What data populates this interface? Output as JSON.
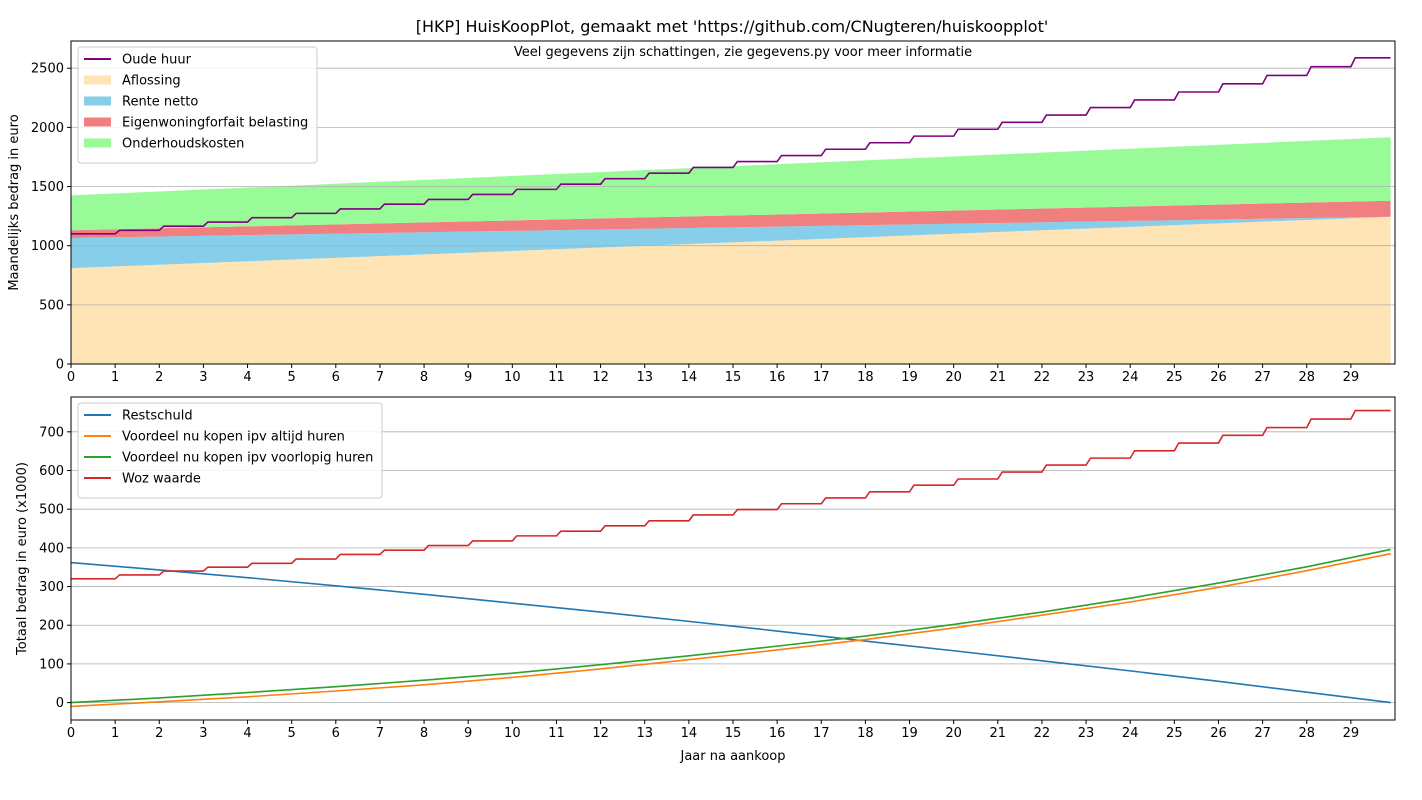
{
  "figure": {
    "title": "[HKP] HuisKoopPlot, gemaakt met 'https://github.com/CNugteren/huiskoopplot'",
    "subtitle": "Veel gegevens zijn schattingen, zie gegevens.py voor meer informatie"
  },
  "chart_data": [
    {
      "type": "area",
      "stacked": true,
      "xlabel": "",
      "ylabel": "Maandelijks bedrag in euro",
      "xlim": [
        0,
        30
      ],
      "ylim": [
        0,
        2730
      ],
      "xticks": [
        0,
        1,
        2,
        3,
        4,
        5,
        6,
        7,
        8,
        9,
        10,
        11,
        12,
        13,
        14,
        15,
        16,
        17,
        18,
        19,
        20,
        21,
        22,
        23,
        24,
        25,
        26,
        27,
        28,
        29
      ],
      "yticks": [
        0,
        500,
        1000,
        1500,
        2000,
        2500
      ],
      "grid": "y",
      "legend_position": "top-left",
      "x": [
        0,
        29.9
      ],
      "series": [
        {
          "name": "Aflossing",
          "color": "#ffe4b5",
          "values": [
            810,
            1245
          ]
        },
        {
          "name": "Rente netto",
          "color": "#87ceeb",
          "values": [
            255,
            0
          ]
        },
        {
          "name": "Eigenwoningforfait belasting",
          "color": "#f08080",
          "values": [
            65,
            135
          ]
        },
        {
          "name": "Onderhoudskosten",
          "color": "#98fb98",
          "values": [
            295,
            537
          ]
        }
      ],
      "step_series": [
        {
          "name": "Oude huur",
          "color": "#800080",
          "values": [
            1100,
            1130,
            1165,
            1200,
            1237,
            1273,
            1311,
            1351,
            1391,
            1433,
            1476,
            1520,
            1566,
            1613,
            1661,
            1711,
            1762,
            1815,
            1870,
            1926,
            1984,
            2043,
            2104,
            2167,
            2232,
            2299,
            2368,
            2439,
            2513,
            2588
          ]
        }
      ]
    },
    {
      "type": "line",
      "xlabel": "Jaar na aankoop",
      "ylabel": "Totaal bedrag in euro (x1000)",
      "xlim": [
        0,
        30
      ],
      "ylim": [
        -45,
        790
      ],
      "xticks": [
        0,
        1,
        2,
        3,
        4,
        5,
        6,
        7,
        8,
        9,
        10,
        11,
        12,
        13,
        14,
        15,
        16,
        17,
        18,
        19,
        20,
        21,
        22,
        23,
        24,
        25,
        26,
        27,
        28,
        29
      ],
      "yticks": [
        0,
        100,
        200,
        300,
        400,
        500,
        600,
        700
      ],
      "grid": "y",
      "legend_position": "top-left",
      "x": [
        0,
        2,
        4,
        6,
        8,
        10,
        12,
        14,
        16,
        18,
        20,
        22,
        24,
        26,
        28,
        29.9
      ],
      "series": [
        {
          "name": "Restschuld",
          "color": "#1f77b4",
          "values": [
            362,
            343,
            323,
            302,
            280,
            257,
            234,
            210,
            185,
            159,
            134,
            108,
            82,
            55,
            27,
            0
          ]
        },
        {
          "name": "Voordeel nu kopen ipv altijd huren",
          "color": "#ff7f0e",
          "values": [
            -10,
            2,
            15,
            30,
            46,
            65,
            87,
            111,
            136,
            163,
            193,
            226,
            260,
            298,
            341,
            385
          ]
        },
        {
          "name": "Voordeel nu kopen ipv voorlopig huren",
          "color": "#2ca02c",
          "values": [
            0,
            12,
            26,
            41,
            58,
            76,
            98,
            121,
            146,
            172,
            202,
            234,
            270,
            309,
            351,
            396
          ]
        }
      ],
      "step_series": [
        {
          "name": "Woz waarde",
          "color": "#d62728",
          "values": [
            320,
            330,
            340,
            350,
            360,
            371,
            383,
            394,
            406,
            418,
            431,
            443,
            457,
            470,
            485,
            499,
            514,
            529,
            545,
            562,
            578,
            596,
            614,
            632,
            651,
            671,
            691,
            711,
            733,
            755
          ]
        }
      ]
    }
  ]
}
